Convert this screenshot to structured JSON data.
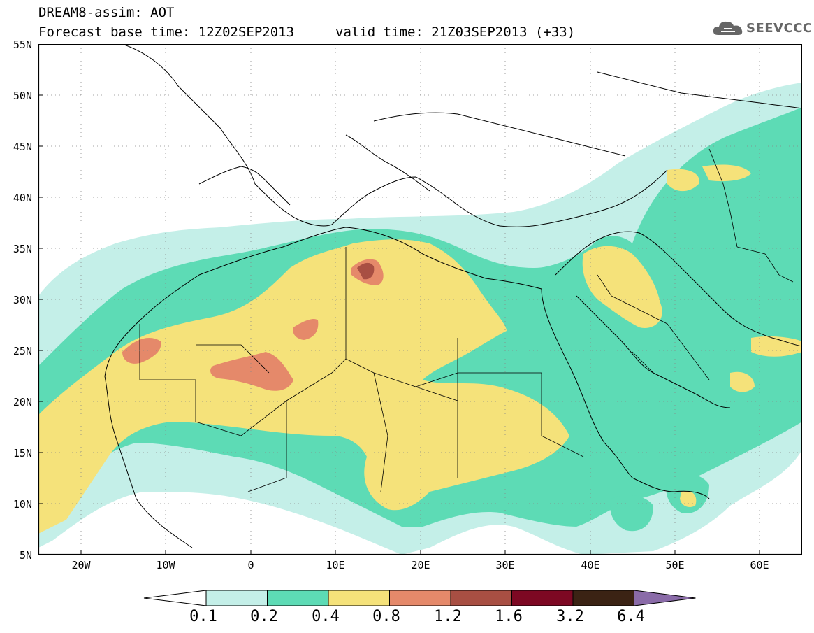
{
  "header": {
    "title": "DREAM8-assim: AOT",
    "base_time": "Forecast base time: 12Z02SEP2013",
    "valid_time": "valid time: 21Z03SEP2013 (+33)",
    "logo_text": "SEEVCCC",
    "logo_icon": "cloud-icon"
  },
  "map": {
    "lon_range": [
      -25,
      65
    ],
    "lat_range": [
      5,
      55
    ],
    "lat_ticks": [
      "5N",
      "10N",
      "15N",
      "20N",
      "25N",
      "30N",
      "35N",
      "40N",
      "45N",
      "50N",
      "55N"
    ],
    "lon_ticks": [
      "20W",
      "10W",
      "0",
      "10E",
      "20E",
      "30E",
      "40E",
      "50E",
      "60E"
    ],
    "gridlines": "dotted",
    "field": "AOT"
  },
  "colorbar": {
    "labels": [
      "0.1",
      "0.2",
      "0.4",
      "0.8",
      "1.2",
      "1.6",
      "3.2",
      "6.4"
    ],
    "colors": [
      "#ffffff",
      "#c4efe8",
      "#5ddbb5",
      "#f5e27a",
      "#e5896a",
      "#a84f43",
      "#7d0823",
      "#3b2314",
      "#8a6ba8"
    ]
  }
}
